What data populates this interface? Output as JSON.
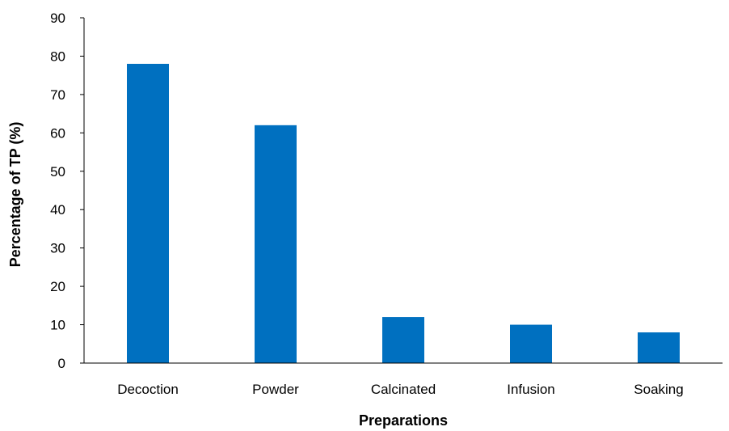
{
  "chart_data": {
    "type": "bar",
    "categories": [
      "Decoction",
      "Powder",
      "Calcinated",
      "Infusion",
      "Soaking"
    ],
    "values": [
      78,
      62,
      12,
      10,
      8
    ],
    "title": "",
    "xlabel": "Preparations",
    "ylabel": "Percentage of  TP (%)",
    "ylim": [
      0,
      90
    ],
    "yticks": [
      "0",
      "10",
      "20",
      "30",
      "40",
      "50",
      "60",
      "70",
      "80",
      "90"
    ],
    "grid": false,
    "legend": "none",
    "bar_color": "#0070C0",
    "axis_color": "#000000"
  }
}
